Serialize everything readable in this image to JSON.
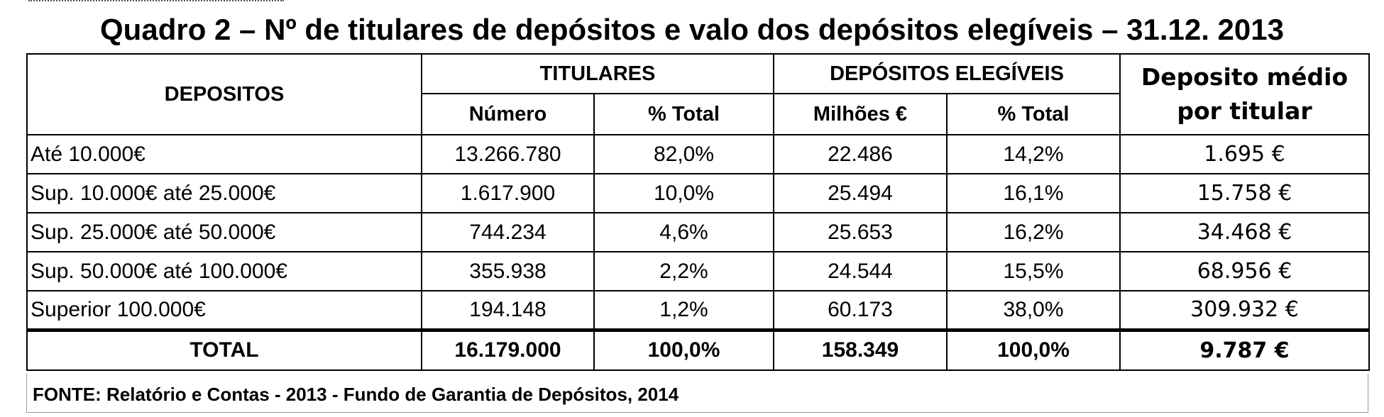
{
  "title": "Quadro 2 – Nº de titulares de depósitos e valo dos depósitos elegíveis – 31.12. 2013",
  "table": {
    "header": {
      "depositos": "DEPOSITOS",
      "titulares": "TITULARES",
      "depositos_elegiveis": "DEPÓSITOS ELEGÍVEIS",
      "deposito_medio_line1": "Deposito médio",
      "deposito_medio_line2": "por titular",
      "numero": "Número",
      "pct_total_titulares": "% Total",
      "milhoes": "Milhões €",
      "pct_total_depositos": "% Total"
    },
    "rows": [
      {
        "label": "Até 10.000€",
        "numero": "13.266.780",
        "pct_titulares": "82,0%",
        "milhoes": "22.486",
        "pct_depositos": "14,2%",
        "medio": "1.695 €"
      },
      {
        "label": "Sup. 10.000€ até 25.000€",
        "numero": "1.617.900",
        "pct_titulares": "10,0%",
        "milhoes": "25.494",
        "pct_depositos": "16,1%",
        "medio": "15.758 €"
      },
      {
        "label": "Sup. 25.000€ até 50.000€",
        "numero": "744.234",
        "pct_titulares": "4,6%",
        "milhoes": "25.653",
        "pct_depositos": "16,2%",
        "medio": "34.468 €"
      },
      {
        "label": "Sup. 50.000€ até 100.000€",
        "numero": "355.938",
        "pct_titulares": "2,2%",
        "milhoes": "24.544",
        "pct_depositos": "15,5%",
        "medio": "68.956 €"
      },
      {
        "label": "Superior 100.000€",
        "numero": "194.148",
        "pct_titulares": "1,2%",
        "milhoes": "60.173",
        "pct_depositos": "38,0%",
        "medio": "309.932 €"
      }
    ],
    "total": {
      "label": "TOTAL",
      "numero": "16.179.000",
      "pct_titulares": "100,0%",
      "milhoes": "158.349",
      "pct_depositos": "100,0%",
      "medio": "9.787 €"
    }
  },
  "source": "FONTE: Relatório e Contas - 2013 - Fundo de Garantia de Depósitos, 2014"
}
